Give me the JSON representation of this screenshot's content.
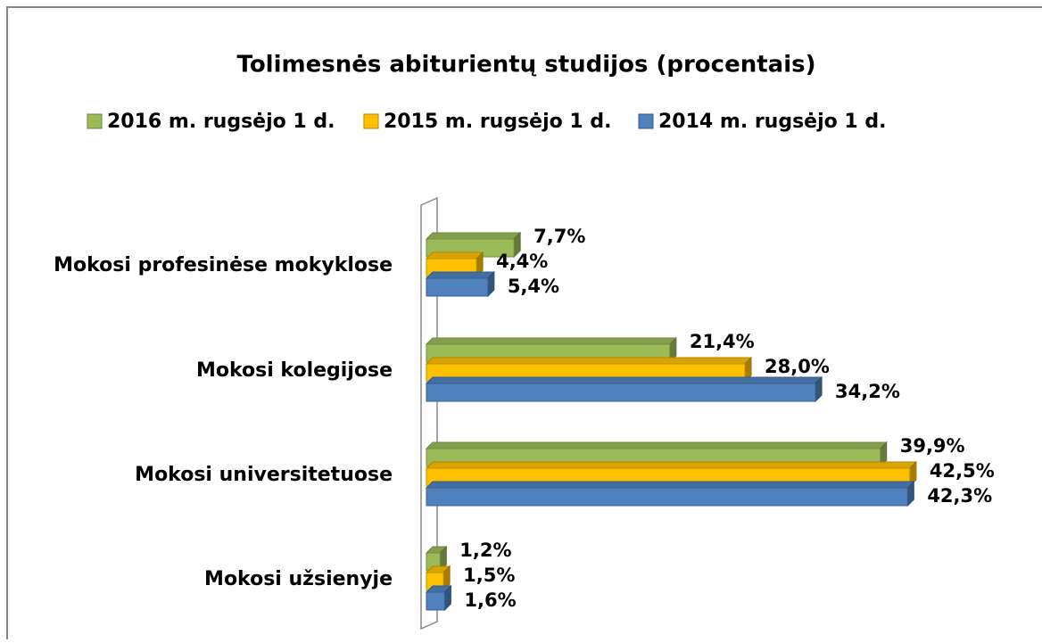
{
  "chart_data": {
    "type": "bar3d",
    "orientation": "horizontal",
    "title": "Tolimesnės abiturientų studijos (procentais)",
    "categories": [
      "Mokosi profesinėse mokyklose",
      "Mokosi kolegijose",
      "Mokosi universitetuose",
      "Mokosi užsienyje"
    ],
    "series": [
      {
        "name": "2016 m. rugsėjo 1 d.",
        "color": "#9bbb59",
        "values": [
          7.7,
          21.4,
          39.9,
          1.2
        ],
        "value_labels": [
          "7,7%",
          "21,4%",
          "39,9%",
          "1,2%"
        ]
      },
      {
        "name": "2015 m. rugsėjo 1 d.",
        "color": "#ffc000",
        "values": [
          4.4,
          28.0,
          42.5,
          1.5
        ],
        "value_labels": [
          "4,4%",
          "28,0%",
          "42,5%",
          "1,5%"
        ]
      },
      {
        "name": "2014 m. rugsėjo 1 d.",
        "color": "#4f81bd",
        "values": [
          5.4,
          34.2,
          42.3,
          1.6
        ],
        "value_labels": [
          "5,4%",
          "34,2%",
          "42,3%",
          "1,6%"
        ]
      }
    ],
    "legend": "top"
  }
}
